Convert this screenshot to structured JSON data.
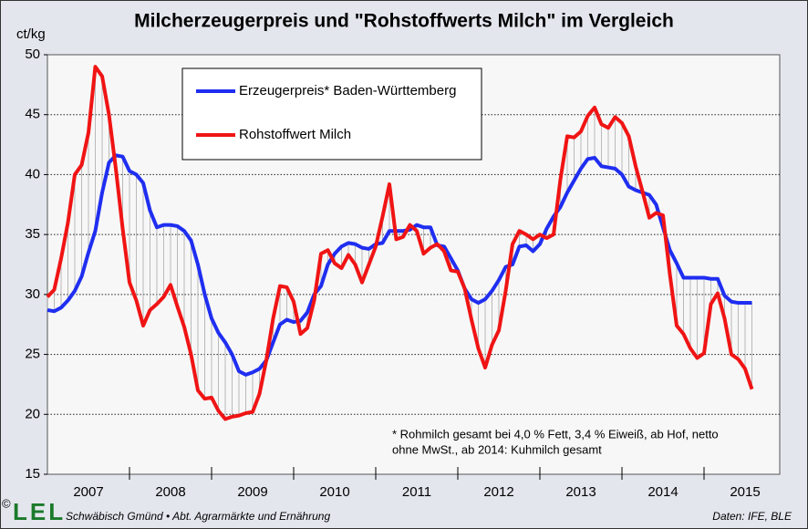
{
  "chart_data": {
    "type": "line",
    "title": "Milcherzeugerpreis und \"Rohstoffwerts Milch\" im Vergleich",
    "y_label": "ct/kg",
    "years": [
      "2007",
      "2008",
      "2009",
      "2010",
      "2011",
      "2012",
      "2013",
      "2014",
      "2015"
    ],
    "ylim": [
      15,
      50
    ],
    "yticks": [
      15,
      20,
      25,
      30,
      35,
      40,
      45,
      50
    ],
    "grid": true,
    "series": [
      {
        "name": "Erzeugerpreis* Baden-Württemberg",
        "color": "#1f2ef0",
        "values": [
          28.7,
          28.6,
          28.9,
          29.5,
          30.3,
          31.5,
          33.5,
          35.3,
          38.5,
          41,
          41.6,
          41.5,
          40.3,
          40,
          39.3,
          37,
          35.6,
          35.8,
          35.8,
          35.7,
          35.3,
          34.5,
          32.5,
          30,
          28,
          26.8,
          26,
          25,
          23.6,
          23.3,
          23.5,
          23.8,
          24.5,
          26,
          27.5,
          27.9,
          27.7,
          27.8,
          28.5,
          30,
          30.7,
          32.5,
          33.4,
          34,
          34.3,
          34.2,
          33.9,
          33.8,
          34.2,
          34.3,
          35.3,
          35.3,
          35.3,
          35.4,
          35.8,
          35.6,
          35.6,
          34.1,
          34,
          33,
          32,
          30.5,
          29.6,
          29.3,
          29.6,
          30.3,
          31.2,
          32.3,
          32.5,
          34,
          34.1,
          33.6,
          34.2,
          35.5,
          36.5,
          37.3,
          38.5,
          39.5,
          40.5,
          41.3,
          41.4,
          40.7,
          40.6,
          40.5,
          40,
          39,
          38.7,
          38.5,
          38.3,
          37.5,
          35.6,
          33.7,
          32.6,
          31.4,
          31.4,
          31.4,
          31.4,
          31.3,
          31.3,
          29.9,
          29.4,
          29.3,
          29.3,
          29.3
        ]
      },
      {
        "name": "Rohstoffwert Milch",
        "color": "#f01414",
        "values": [
          29.8,
          30.4,
          33,
          36,
          40,
          40.8,
          43.5,
          49,
          48.2,
          45,
          40.5,
          35.5,
          31,
          29.5,
          27.4,
          28.7,
          29.2,
          29.8,
          30.8,
          29,
          27.3,
          25,
          22,
          21.3,
          21.4,
          20.3,
          19.6,
          19.8,
          19.9,
          20.1,
          20.2,
          21.7,
          24.5,
          28,
          30.7,
          30.6,
          29.4,
          26.7,
          27.2,
          29.5,
          33.4,
          33.7,
          32.6,
          32.2,
          33.3,
          32.5,
          31,
          32.5,
          34,
          36.5,
          39.2,
          34.6,
          34.8,
          35.8,
          35.3,
          33.4,
          33.9,
          34.2,
          33.6,
          32,
          31.9,
          30.5,
          27.9,
          25.5,
          23.9,
          25.8,
          27,
          30.3,
          34.2,
          35.3,
          35,
          34.6,
          35,
          34.7,
          35,
          39.6,
          43.2,
          43.1,
          43.6,
          44.9,
          45.6,
          44.2,
          43.9,
          44.8,
          44.3,
          43.2,
          40.7,
          38.6,
          36.4,
          36.8,
          36.6,
          31.7,
          27.4,
          26.7,
          25.5,
          24.7,
          25.1,
          29.2,
          30.1,
          28,
          25,
          24.6,
          23.8,
          22.1
        ]
      }
    ],
    "footnote": [
      "* Rohmilch gesamt bei 4,0 % Fett, 3,4 % Eiweiß, ab Hof, netto",
      "ohne MwSt., ab 2014: Kuhmilch gesamt"
    ],
    "copyright": "©",
    "logo": "LEL",
    "institution": "Schwäbisch Gmünd • Abt. Agrarmärkte und Ernährung",
    "source": "Daten: IFE, BLE"
  }
}
